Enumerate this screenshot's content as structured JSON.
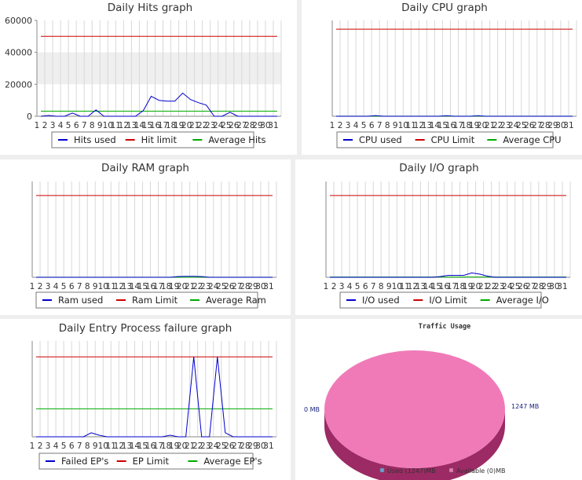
{
  "chart_data": [
    {
      "type": "line",
      "title": "Daily Hits graph",
      "x": [
        1,
        2,
        3,
        4,
        5,
        6,
        7,
        8,
        9,
        10,
        11,
        12,
        13,
        14,
        15,
        16,
        17,
        18,
        19,
        20,
        21,
        22,
        23,
        24,
        25,
        26,
        27,
        28,
        29,
        30,
        31
      ],
      "ylim": [
        0,
        60000
      ],
      "yticks": [
        0,
        20000,
        40000,
        60000
      ],
      "ytick_labels": [
        "0",
        "20000",
        "40000",
        "60000"
      ],
      "band": [
        20000,
        40000
      ],
      "series": [
        {
          "name": "Hits used",
          "color": "#0000cc",
          "values": [
            0,
            500,
            0,
            0,
            2000,
            0,
            0,
            4000,
            0,
            0,
            0,
            0,
            0,
            3500,
            12500,
            10000,
            9500,
            9500,
            14500,
            10500,
            8500,
            7000,
            0,
            0,
            2500,
            0,
            0,
            0,
            0,
            0,
            0
          ]
        },
        {
          "name": "Hit limit",
          "color": "#cc0000",
          "values": [
            50000,
            50000,
            50000,
            50000,
            50000,
            50000,
            50000,
            50000,
            50000,
            50000,
            50000,
            50000,
            50000,
            50000,
            50000,
            50000,
            50000,
            50000,
            50000,
            50000,
            50000,
            50000,
            50000,
            50000,
            50000,
            50000,
            50000,
            50000,
            50000,
            50000,
            50000
          ]
        },
        {
          "name": "Average Hits",
          "color": "#00aa00",
          "values": [
            3200,
            3200,
            3200,
            3200,
            3200,
            3200,
            3200,
            3200,
            3200,
            3200,
            3200,
            3200,
            3200,
            3200,
            3200,
            3200,
            3200,
            3200,
            3200,
            3200,
            3200,
            3200,
            3200,
            3200,
            3200,
            3200,
            3200,
            3200,
            3200,
            3200,
            3200
          ]
        }
      ]
    },
    {
      "type": "line",
      "title": "Daily CPU graph",
      "x": [
        1,
        2,
        3,
        4,
        5,
        6,
        7,
        8,
        9,
        10,
        11,
        12,
        13,
        14,
        15,
        16,
        17,
        18,
        19,
        20,
        21,
        22,
        23,
        24,
        25,
        26,
        27,
        28,
        29,
        30,
        31
      ],
      "ylim": [
        0,
        110
      ],
      "series": [
        {
          "name": "CPU used",
          "color": "#0000cc",
          "values": [
            0,
            0,
            0,
            0,
            0,
            0.8,
            0,
            0,
            0,
            0,
            0,
            0,
            0,
            0,
            0.7,
            0,
            0,
            0,
            0.7,
            0,
            0,
            0,
            0,
            0,
            0,
            0,
            0,
            0,
            0,
            0,
            0
          ]
        },
        {
          "name": "CPU Limit",
          "color": "#cc0000",
          "values": [
            100,
            100,
            100,
            100,
            100,
            100,
            100,
            100,
            100,
            100,
            100,
            100,
            100,
            100,
            100,
            100,
            100,
            100,
            100,
            100,
            100,
            100,
            100,
            100,
            100,
            100,
            100,
            100,
            100,
            100,
            100
          ]
        },
        {
          "name": "Average CPU",
          "color": "#00aa00",
          "values": [
            0.1,
            0.1,
            0.1,
            0.1,
            0.1,
            0.1,
            0.1,
            0.1,
            0.1,
            0.1,
            0.1,
            0.1,
            0.1,
            0.1,
            0.1,
            0.1,
            0.1,
            0.1,
            0.1,
            0.1,
            0.1,
            0.1,
            0.1,
            0.1,
            0.1,
            0.1,
            0.1,
            0.1,
            0.1,
            0.1,
            0.1
          ]
        }
      ]
    },
    {
      "type": "line",
      "title": "Daily RAM graph",
      "x": [
        1,
        2,
        3,
        4,
        5,
        6,
        7,
        8,
        9,
        10,
        11,
        12,
        13,
        14,
        15,
        16,
        17,
        18,
        19,
        20,
        21,
        22,
        23,
        24,
        25,
        26,
        27,
        28,
        29,
        30,
        31
      ],
      "ylim": [
        0,
        1200
      ],
      "series": [
        {
          "name": "Ram used",
          "color": "#0000cc",
          "values": [
            0,
            0,
            0,
            0,
            0,
            0,
            0,
            0,
            0,
            0,
            0,
            0,
            0,
            0,
            0,
            0,
            0,
            0,
            10,
            12,
            12,
            10,
            0,
            0,
            0,
            0,
            0,
            0,
            0,
            0,
            0
          ]
        },
        {
          "name": "Ram Limit",
          "color": "#cc0000",
          "values": [
            1024,
            1024,
            1024,
            1024,
            1024,
            1024,
            1024,
            1024,
            1024,
            1024,
            1024,
            1024,
            1024,
            1024,
            1024,
            1024,
            1024,
            1024,
            1024,
            1024,
            1024,
            1024,
            1024,
            1024,
            1024,
            1024,
            1024,
            1024,
            1024,
            1024,
            1024
          ]
        },
        {
          "name": "Average Ram",
          "color": "#00aa00",
          "values": [
            1,
            1,
            1,
            1,
            1,
            1,
            1,
            1,
            1,
            1,
            1,
            1,
            1,
            1,
            1,
            1,
            1,
            1,
            1,
            1,
            1,
            1,
            1,
            1,
            1,
            1,
            1,
            1,
            1,
            1,
            1
          ]
        }
      ]
    },
    {
      "type": "line",
      "title": "Daily I/O graph",
      "x": [
        1,
        2,
        3,
        4,
        5,
        6,
        7,
        8,
        9,
        10,
        11,
        12,
        13,
        14,
        15,
        16,
        17,
        18,
        19,
        20,
        21,
        22,
        23,
        24,
        25,
        26,
        27,
        28,
        29,
        30,
        31
      ],
      "ylim": [
        0,
        1200
      ],
      "series": [
        {
          "name": "I/O used",
          "color": "#0000cc",
          "values": [
            0,
            0,
            0,
            0,
            0,
            0,
            0,
            0,
            0,
            0,
            0,
            0,
            0,
            0,
            10,
            25,
            25,
            25,
            55,
            40,
            15,
            0,
            0,
            0,
            0,
            0,
            0,
            0,
            0,
            0,
            0
          ]
        },
        {
          "name": "I/O Limit",
          "color": "#cc0000",
          "values": [
            1024,
            1024,
            1024,
            1024,
            1024,
            1024,
            1024,
            1024,
            1024,
            1024,
            1024,
            1024,
            1024,
            1024,
            1024,
            1024,
            1024,
            1024,
            1024,
            1024,
            1024,
            1024,
            1024,
            1024,
            1024,
            1024,
            1024,
            1024,
            1024,
            1024,
            1024
          ]
        },
        {
          "name": "Average I/O",
          "color": "#00aa00",
          "values": [
            4,
            4,
            4,
            4,
            4,
            4,
            4,
            4,
            4,
            4,
            4,
            4,
            4,
            4,
            4,
            4,
            4,
            4,
            4,
            4,
            4,
            4,
            4,
            4,
            4,
            4,
            4,
            4,
            4,
            4,
            4
          ]
        }
      ]
    },
    {
      "type": "line",
      "title": "Daily Entry Process failure graph",
      "x": [
        1,
        2,
        3,
        4,
        5,
        6,
        7,
        8,
        9,
        10,
        11,
        12,
        13,
        14,
        15,
        16,
        17,
        18,
        19,
        20,
        21,
        22,
        23,
        24,
        25,
        26,
        27,
        28,
        29,
        30,
        31
      ],
      "ylim": [
        0,
        24
      ],
      "series": [
        {
          "name": "Failed EP's",
          "color": "#0000cc",
          "values": [
            0,
            0,
            0,
            0,
            0,
            0,
            0,
            1,
            0.4,
            0,
            0,
            0,
            0,
            0,
            0,
            0,
            0,
            0.4,
            0,
            0,
            20,
            0,
            0,
            20,
            1,
            0,
            0,
            0,
            0,
            0,
            0
          ]
        },
        {
          "name": "EP Limit",
          "color": "#cc0000",
          "values": [
            20,
            20,
            20,
            20,
            20,
            20,
            20,
            20,
            20,
            20,
            20,
            20,
            20,
            20,
            20,
            20,
            20,
            20,
            20,
            20,
            20,
            20,
            20,
            20,
            20,
            20,
            20,
            20,
            20,
            20,
            20
          ]
        },
        {
          "name": "Average EP's",
          "color": "#00aa00",
          "values": [
            7,
            7,
            7,
            7,
            7,
            7,
            7,
            7,
            7,
            7,
            7,
            7,
            7,
            7,
            7,
            7,
            7,
            7,
            7,
            7,
            7,
            7,
            7,
            7,
            7,
            7,
            7,
            7,
            7,
            7,
            7
          ]
        }
      ]
    },
    {
      "type": "pie",
      "title": "Traffic Usage",
      "slices": [
        {
          "name": "Used (1247)MB",
          "value": 1247,
          "color": "#f07ab8",
          "side_color": "#9c2a64",
          "legend_color": "#6fa0d8"
        },
        {
          "name": "Available (0)MB",
          "value": 0,
          "color": "#f07ab8",
          "legend_color": "#f07ab8"
        }
      ],
      "labels": [
        "0 MB",
        "1247 MB"
      ]
    }
  ]
}
